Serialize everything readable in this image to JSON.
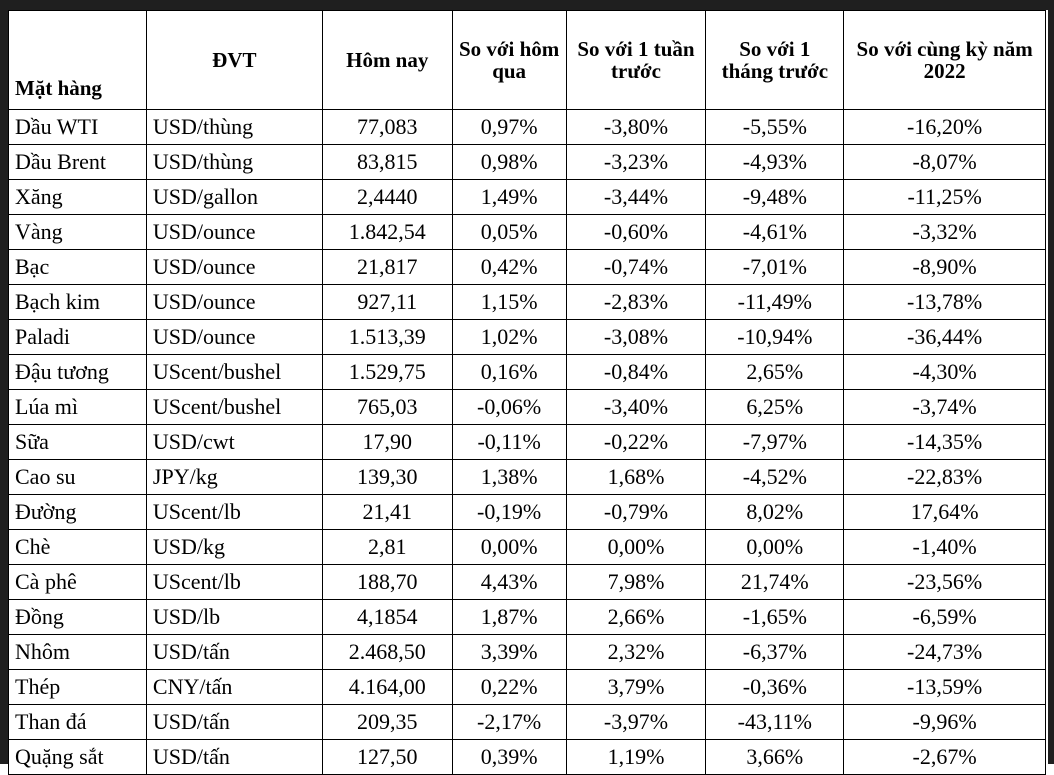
{
  "headers": [
    "Mặt hàng",
    "ĐVT",
    "Hôm nay",
    "So với hôm qua",
    "So với 1 tuần trước",
    "So với 1 tháng trước",
    "So với cùng kỳ năm 2022"
  ],
  "rows": [
    [
      "Dầu WTI",
      "USD/thùng",
      "77,083",
      "0,97%",
      "-3,80%",
      "-5,55%",
      "-16,20%"
    ],
    [
      "Dầu Brent",
      "USD/thùng",
      "83,815",
      "0,98%",
      "-3,23%",
      "-4,93%",
      "-8,07%"
    ],
    [
      "Xăng",
      "USD/gallon",
      "2,4440",
      "1,49%",
      "-3,44%",
      "-9,48%",
      "-11,25%"
    ],
    [
      "Vàng",
      "USD/ounce",
      "1.842,54",
      "0,05%",
      "-0,60%",
      "-4,61%",
      "-3,32%"
    ],
    [
      "Bạc",
      "USD/ounce",
      "21,817",
      "0,42%",
      "-0,74%",
      "-7,01%",
      "-8,90%"
    ],
    [
      "Bạch kim",
      "USD/ounce",
      "927,11",
      "1,15%",
      "-2,83%",
      "-11,49%",
      "-13,78%"
    ],
    [
      "Paladi",
      "USD/ounce",
      "1.513,39",
      "1,02%",
      "-3,08%",
      "-10,94%",
      "-36,44%"
    ],
    [
      "Đậu tương",
      "UScent/bushel",
      "1.529,75",
      "0,16%",
      "-0,84%",
      "2,65%",
      "-4,30%"
    ],
    [
      "Lúa mì",
      "UScent/bushel",
      "765,03",
      "-0,06%",
      "-3,40%",
      "6,25%",
      "-3,74%"
    ],
    [
      "Sữa",
      "USD/cwt",
      "17,90",
      "-0,11%",
      "-0,22%",
      "-7,97%",
      "-14,35%"
    ],
    [
      "Cao su",
      "JPY/kg",
      "139,30",
      "1,38%",
      "1,68%",
      "-4,52%",
      "-22,83%"
    ],
    [
      "Đường",
      "UScent/lb",
      "21,41",
      "-0,19%",
      "-0,79%",
      "8,02%",
      "17,64%"
    ],
    [
      "Chè",
      "USD/kg",
      "2,81",
      "0,00%",
      "0,00%",
      "0,00%",
      "-1,40%"
    ],
    [
      "Cà phê",
      "UScent/lb",
      "188,70",
      "4,43%",
      "7,98%",
      "21,74%",
      "-23,56%"
    ],
    [
      "Đồng",
      "USD/lb",
      "4,1854",
      "1,87%",
      "2,66%",
      "-1,65%",
      "-6,59%"
    ],
    [
      "Nhôm",
      "USD/tấn",
      "2.468,50",
      "3,39%",
      "2,32%",
      "-6,37%",
      "-24,73%"
    ],
    [
      "Thép",
      "CNY/tấn",
      "4.164,00",
      "0,22%",
      "3,79%",
      "-0,36%",
      "-13,59%"
    ],
    [
      "Than đá",
      "USD/tấn",
      "209,35",
      "-2,17%",
      "-3,97%",
      "-43,11%",
      "-9,96%"
    ],
    [
      "Quặng sắt",
      "USD/tấn",
      "127,50",
      "0,39%",
      "1,19%",
      "3,66%",
      "-2,67%"
    ]
  ]
}
